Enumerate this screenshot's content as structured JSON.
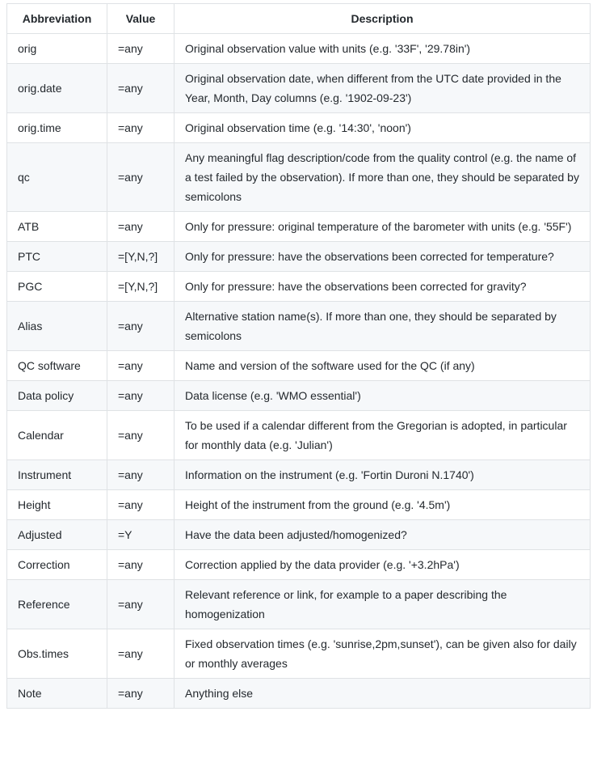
{
  "colors": {
    "text": "#24292e",
    "border": "#dfe2e5",
    "row_stripe": "#f6f8fa",
    "row_default": "#ffffff",
    "page_background": "#ffffff"
  },
  "table": {
    "headers": [
      {
        "label": "Abbreviation"
      },
      {
        "label": "Value"
      },
      {
        "label": "Description"
      }
    ],
    "rows": [
      {
        "abbreviation": "orig",
        "value": "=any",
        "description": "Original observation value with units (e.g. '33F', '29.78in')"
      },
      {
        "abbreviation": "orig.date",
        "value": "=any",
        "description": "Original observation date, when different from the UTC date provided in the Year, Month, Day columns (e.g. '1902-09-23')"
      },
      {
        "abbreviation": "orig.time",
        "value": "=any",
        "description": "Original observation time (e.g. '14:30', 'noon')"
      },
      {
        "abbreviation": "qc",
        "value": "=any",
        "description": "Any meaningful flag description/code from the quality control (e.g. the name of a test failed by the observation). If more than one, they should be separated by semicolons"
      },
      {
        "abbreviation": "ATB",
        "value": "=any",
        "description": "Only for pressure: original temperature of the barometer with units (e.g. '55F')"
      },
      {
        "abbreviation": "PTC",
        "value": "=[Y,N,?]",
        "description": "Only for pressure: have the observations been corrected for temperature?"
      },
      {
        "abbreviation": "PGC",
        "value": "=[Y,N,?]",
        "description": "Only for pressure: have the observations been corrected for gravity?"
      },
      {
        "abbreviation": "Alias",
        "value": "=any",
        "description": "Alternative station name(s). If more than one, they should be separated by semicolons"
      },
      {
        "abbreviation": "QC software",
        "value": "=any",
        "description": "Name and version of the software used for the QC (if any)"
      },
      {
        "abbreviation": "Data policy",
        "value": "=any",
        "description": "Data license  (e.g. 'WMO essential')"
      },
      {
        "abbreviation": "Calendar",
        "value": "=any",
        "description": "To be used if a calendar different from the Gregorian is adopted, in particular for monthly data (e.g. 'Julian')"
      },
      {
        "abbreviation": "Instrument",
        "value": "=any",
        "description": "Information on the instrument (e.g. 'Fortin Duroni N.1740')"
      },
      {
        "abbreviation": "Height",
        "value": "=any",
        "description": "Height of the instrument from the ground (e.g. '4.5m')"
      },
      {
        "abbreviation": "Adjusted",
        "value": "=Y",
        "description": "Have the data been adjusted/homogenized?"
      },
      {
        "abbreviation": "Correction",
        "value": "=any",
        "description": "Correction applied by the data provider (e.g. '+3.2hPa')"
      },
      {
        "abbreviation": "Reference",
        "value": "=any",
        "description": "Relevant reference or link, for example to a paper describing the homogenization"
      },
      {
        "abbreviation": "Obs.times",
        "value": "=any",
        "description": "Fixed observation times (e.g. 'sunrise,2pm,sunset'), can be given also for daily or monthly averages"
      },
      {
        "abbreviation": "Note",
        "value": "=any",
        "description": "Anything else"
      }
    ]
  }
}
